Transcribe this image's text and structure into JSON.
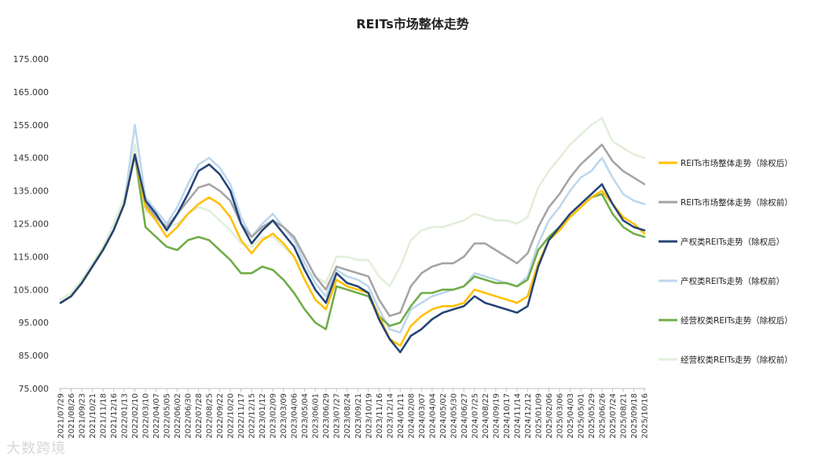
{
  "chart_data": {
    "type": "line",
    "title": "REITs市场整体走势",
    "ylim": [
      75,
      175
    ],
    "yticks": [
      "75.000",
      "85.000",
      "95.000",
      "105.000",
      "115.000",
      "125.000",
      "135.000",
      "145.000",
      "155.000",
      "165.000",
      "175.000"
    ],
    "grid": false,
    "legend_position": "right",
    "x": [
      "2021/07/29",
      "2021/08/26",
      "2021/09/23",
      "2021/10/21",
      "2021/11/18",
      "2021/12/16",
      "2022/01/13",
      "2022/02/10",
      "2022/03/10",
      "2022/04/07",
      "2022/05/05",
      "2022/06/02",
      "2022/06/30",
      "2022/07/28",
      "2022/08/25",
      "2022/09/22",
      "2022/10/20",
      "2022/11/17",
      "2022/12/15",
      "2023/01/12",
      "2023/02/09",
      "2023/03/09",
      "2023/04/06",
      "2023/05/04",
      "2023/06/01",
      "2023/06/29",
      "2023/07/27",
      "2023/08/24",
      "2023/09/21",
      "2023/10/19",
      "2023/11/16",
      "2023/12/14",
      "2024/01/11",
      "2024/02/08",
      "2024/03/07",
      "2024/04/04",
      "2024/05/02",
      "2024/05/30",
      "2024/06/27",
      "2024/07/25",
      "2024/08/22",
      "2024/09/19",
      "2024/10/17",
      "2024/11/14",
      "2024/12/12",
      "2025/01/09",
      "2025/02/06",
      "2025/03/06",
      "2025/04/03",
      "2025/05/01",
      "2025/05/29",
      "2025/06/26",
      "2025/07/24",
      "2025/08/21",
      "2025/09/18",
      "2025/10/16"
    ],
    "series": [
      {
        "name": "REITs市场整体走势（除权后）",
        "color": "#FFC000",
        "width": 2.6,
        "values": [
          101,
          103,
          107,
          112,
          117,
          123,
          131,
          146,
          130,
          126,
          121,
          124,
          128,
          131,
          133,
          131,
          127,
          120,
          116,
          120,
          122,
          119,
          115,
          108,
          102,
          99,
          108,
          106,
          105,
          104,
          97,
          90,
          88,
          94,
          97,
          99,
          100,
          100,
          101,
          105,
          104,
          103,
          102,
          101,
          103,
          113,
          120,
          123,
          127,
          130,
          133,
          135,
          131,
          127,
          125,
          122
        ]
      },
      {
        "name": "REITs市场整体走势（除权前）",
        "color": "#A5A5A5",
        "width": 2.6,
        "values": [
          101,
          103,
          107,
          112,
          117,
          123,
          131,
          146,
          131,
          127,
          124,
          128,
          132,
          136,
          137,
          135,
          132,
          125,
          121,
          124,
          126,
          124,
          121,
          115,
          109,
          105,
          112,
          111,
          110,
          109,
          102,
          97,
          98,
          106,
          110,
          112,
          113,
          113,
          115,
          119,
          119,
          117,
          115,
          113,
          116,
          124,
          130,
          134,
          139,
          143,
          146,
          149,
          144,
          141,
          139,
          137
        ]
      },
      {
        "name": "产权类REITs走势（除权后）",
        "color": "#264478",
        "width": 2.6,
        "values": [
          101,
          103,
          107,
          112,
          117,
          123,
          131,
          146,
          132,
          128,
          123,
          128,
          134,
          141,
          143,
          140,
          135,
          125,
          119,
          123,
          126,
          122,
          118,
          111,
          105,
          101,
          110,
          107,
          106,
          104,
          96,
          90,
          86,
          91,
          93,
          96,
          98,
          99,
          100,
          103,
          101,
          100,
          99,
          98,
          100,
          112,
          120,
          124,
          128,
          131,
          134,
          137,
          131,
          126,
          124,
          123
        ]
      },
      {
        "name": "产权类REITs走势（除权前）",
        "color": "#BDD7EE",
        "width": 2.6,
        "values": [
          101,
          103,
          107,
          112,
          117,
          123,
          131,
          155,
          133,
          129,
          125,
          130,
          137,
          143,
          145,
          142,
          137,
          127,
          121,
          125,
          128,
          124,
          120,
          113,
          107,
          103,
          111,
          109,
          108,
          106,
          99,
          93,
          92,
          99,
          101,
          103,
          104,
          105,
          106,
          110,
          109,
          108,
          107,
          106,
          109,
          119,
          126,
          130,
          135,
          139,
          141,
          145,
          139,
          134,
          132,
          131
        ]
      },
      {
        "name": "经营权类REITs走势（除权后）",
        "color": "#70AD47",
        "width": 2.6,
        "values": [
          101,
          103,
          107,
          112,
          117,
          123,
          131,
          146,
          124,
          121,
          118,
          117,
          120,
          121,
          120,
          117,
          114,
          110,
          110,
          112,
          111,
          108,
          104,
          99,
          95,
          93,
          106,
          105,
          104,
          103,
          97,
          94,
          95,
          100,
          104,
          104,
          105,
          105,
          106,
          109,
          108,
          107,
          107,
          106,
          108,
          117,
          121,
          124,
          127,
          130,
          133,
          134,
          128,
          124,
          122,
          121
        ]
      },
      {
        "name": "经营权类REITs走势（除权前）",
        "color": "#E2EFDA",
        "width": 2.6,
        "values": [
          102,
          104,
          108,
          113,
          118,
          125,
          133,
          149,
          129,
          126,
          124,
          125,
          128,
          130,
          129,
          126,
          123,
          119,
          118,
          121,
          121,
          118,
          115,
          111,
          109,
          107,
          115,
          115,
          114,
          114,
          109,
          106,
          112,
          120,
          123,
          124,
          124,
          125,
          126,
          128,
          127,
          126,
          126,
          125,
          127,
          136,
          141,
          145,
          149,
          152,
          155,
          157,
          150,
          148,
          146,
          145
        ]
      }
    ]
  },
  "watermark": "大数跨境"
}
